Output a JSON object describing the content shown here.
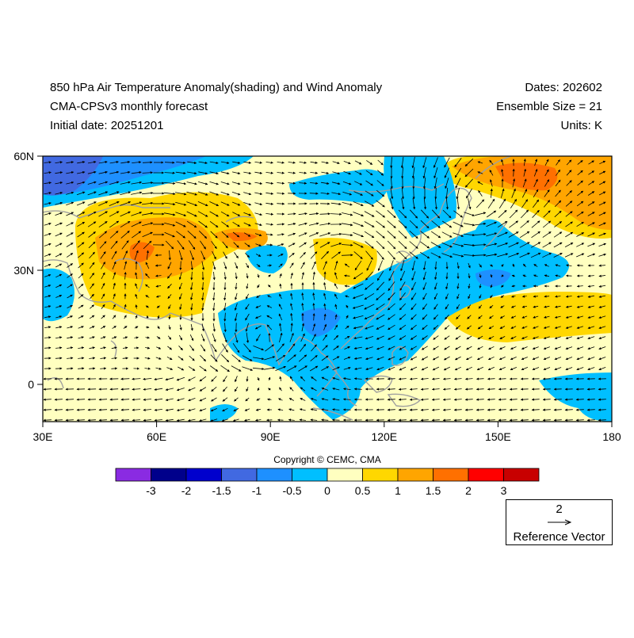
{
  "titles": {
    "main": "850 hPa Air Temperature Anomaly(shading) and Wind Anomaly",
    "model": "CMA-CPSv3 monthly forecast",
    "initial": "Initial date: 20251201",
    "dates": "Dates: 202602",
    "ensemble": "Ensemble Size = 21",
    "units": "Units: K"
  },
  "axes": {
    "lon_labels": [
      "30E",
      "60E",
      "90E",
      "120E",
      "150E",
      "180"
    ],
    "lat_labels": [
      "60N",
      "30N",
      "0"
    ]
  },
  "colorbar": {
    "colors": [
      "#8a2be2",
      "#00008b",
      "#0000cd",
      "#4169e1",
      "#1e90ff",
      "#00bfff",
      "#ffffc0",
      "#ffd700",
      "#ffa500",
      "#ff7000",
      "#ff0000",
      "#c80000"
    ],
    "labels": [
      "-3",
      "-2",
      "-1.5",
      "-1",
      "-0.5",
      "0",
      "0.5",
      "1",
      "1.5",
      "2",
      "3"
    ]
  },
  "copyright": "Copyright © CEMC, CMA",
  "reference_vector": {
    "value": "2",
    "label": "Reference Vector"
  },
  "palette": {
    "background": "#ffffc0",
    "coast": "#a0a0a0",
    "arrow": "#000000"
  }
}
